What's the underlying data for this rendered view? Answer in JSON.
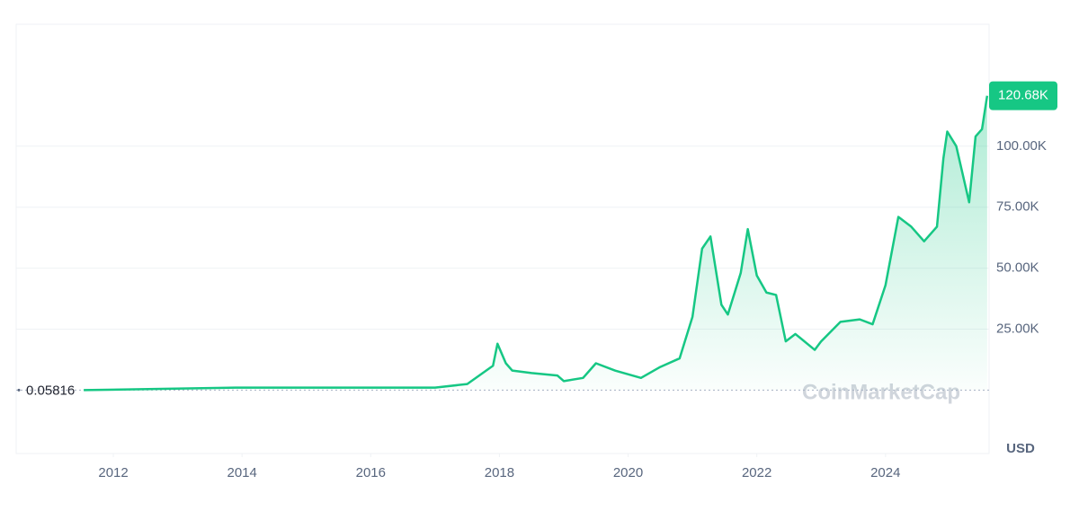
{
  "chart_data": {
    "type": "area-line",
    "watermark": "CoinMarketCap",
    "currency": "USD",
    "color": "#16c784",
    "x": [
      2011.54,
      2013.9,
      2017.0,
      2017.5,
      2017.9,
      2017.97,
      2018.1,
      2018.2,
      2018.5,
      2018.9,
      2019.0,
      2019.3,
      2019.5,
      2019.8,
      2020.2,
      2020.5,
      2020.8,
      2021.0,
      2021.15,
      2021.28,
      2021.45,
      2021.55,
      2021.75,
      2021.86,
      2022.0,
      2022.15,
      2022.3,
      2022.45,
      2022.6,
      2022.9,
      2023.0,
      2023.3,
      2023.6,
      2023.8,
      2024.0,
      2024.2,
      2024.4,
      2024.6,
      2024.8,
      2024.9,
      2024.96,
      2025.1,
      2025.3,
      2025.4,
      2025.5,
      2025.58
    ],
    "values": [
      0.05816,
      1000,
      1000,
      2500,
      10000,
      19000,
      11000,
      8000,
      7000,
      6000,
      3700,
      5000,
      11000,
      8000,
      5000,
      9500,
      13000,
      30000,
      58000,
      63000,
      35000,
      31000,
      48000,
      66000,
      47000,
      40000,
      39000,
      20000,
      23000,
      16500,
      20000,
      28000,
      29000,
      27000,
      43000,
      71000,
      67000,
      61000,
      67000,
      95000,
      106000,
      100000,
      77000,
      104000,
      107000,
      120680
    ],
    "value_labels": [
      "0.05816",
      null,
      null,
      null,
      null,
      null,
      null,
      null,
      null,
      null,
      null,
      null,
      null,
      null,
      null,
      null,
      null,
      null,
      null,
      null,
      null,
      null,
      null,
      null,
      null,
      null,
      null,
      null,
      null,
      null,
      null,
      null,
      null,
      null,
      null,
      null,
      null,
      null,
      null,
      null,
      null,
      null,
      null,
      null,
      null,
      "120.68K"
    ],
    "xlim": [
      2010.49,
      2025.61
    ],
    "xticks": [
      2012,
      2014,
      2016,
      2018,
      2020,
      2022,
      2024
    ],
    "ylim": [
      -26000,
      150000
    ],
    "yticks": [
      {
        "value": 25000,
        "label": "25.00K"
      },
      {
        "value": 50000,
        "label": "50.00K"
      },
      {
        "value": 75000,
        "label": "75.00K"
      },
      {
        "value": 100000,
        "label": "100.00K"
      }
    ],
    "grid": true
  }
}
